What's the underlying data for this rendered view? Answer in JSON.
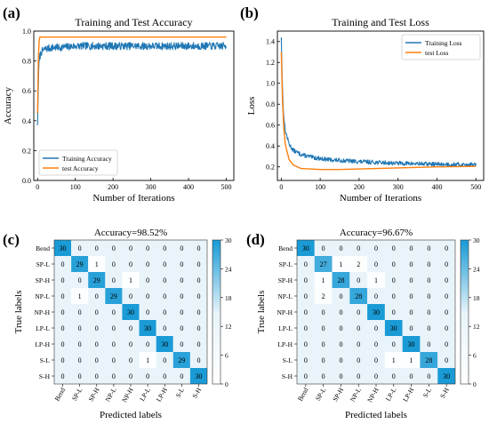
{
  "chart_data": [
    {
      "id": "a",
      "type": "line",
      "panel_label": "(a)",
      "title": "Training and Test Accuracy",
      "xlabel": "Number of Iterations",
      "ylabel": "Accuracy",
      "xlim": [
        -10,
        520
      ],
      "ylim": [
        0.0,
        1.0
      ],
      "xticks": [
        0,
        100,
        200,
        300,
        400,
        500
      ],
      "yticks": [
        0.0,
        0.2,
        0.4,
        0.6,
        0.8,
        1.0
      ],
      "ytick_labels": [
        "0.0",
        "0.2",
        "0.4",
        "0.6",
        "0.8",
        "1.0"
      ],
      "legend_position": "lower-left",
      "colors": {
        "Training Accuracy": "#1f77b4",
        "test Accuracy": "#ff7f0e"
      },
      "series": [
        {
          "name": "Training Accuracy",
          "style": "noisy",
          "x": [
            0,
            3,
            6,
            10,
            20,
            40,
            60,
            100,
            150,
            200,
            250,
            300,
            350,
            400,
            450,
            500
          ],
          "y": [
            0.37,
            0.75,
            0.83,
            0.86,
            0.88,
            0.89,
            0.89,
            0.9,
            0.9,
            0.9,
            0.9,
            0.9,
            0.9,
            0.9,
            0.9,
            0.9
          ],
          "noise": 0.025,
          "seed": 7
        },
        {
          "name": "test Accuracy",
          "style": "smooth",
          "x": [
            0,
            2,
            4,
            6,
            10,
            500
          ],
          "y": [
            0.45,
            0.8,
            0.93,
            0.96,
            0.96,
            0.96
          ]
        }
      ]
    },
    {
      "id": "b",
      "type": "line",
      "panel_label": "(b)",
      "title": "Training and Test Loss",
      "xlabel": "Number of Iterations",
      "ylabel": "Loss",
      "xlim": [
        -10,
        520
      ],
      "ylim": [
        0.07,
        1.5
      ],
      "xticks": [
        0,
        100,
        200,
        300,
        400,
        500
      ],
      "yticks": [
        0.2,
        0.4,
        0.6,
        0.8,
        1.0,
        1.2,
        1.4
      ],
      "ytick_labels": [
        "0.2",
        "0.4",
        "0.6",
        "0.8",
        "1.0",
        "1.2",
        "1.4"
      ],
      "legend_position": "upper-right",
      "colors": {
        "Training Loss": "#1f77b4",
        "test Loss": "#ff7f0e"
      },
      "series": [
        {
          "name": "Training Loss",
          "style": "noisy",
          "x": [
            0,
            2,
            5,
            10,
            20,
            30,
            50,
            80,
            120,
            200,
            300,
            400,
            500
          ],
          "y": [
            1.44,
            1.1,
            0.75,
            0.55,
            0.42,
            0.36,
            0.32,
            0.29,
            0.27,
            0.25,
            0.235,
            0.225,
            0.22
          ],
          "noise": 0.02,
          "seed": 13
        },
        {
          "name": "test Loss",
          "style": "smooth",
          "x": [
            0,
            3,
            6,
            10,
            20,
            30,
            50,
            100,
            150,
            200,
            300,
            400,
            500
          ],
          "y": [
            1.3,
            0.85,
            0.6,
            0.42,
            0.27,
            0.22,
            0.185,
            0.175,
            0.175,
            0.18,
            0.19,
            0.2,
            0.205
          ]
        }
      ]
    },
    {
      "id": "c",
      "type": "heatmap",
      "panel_label": "(c)",
      "title": "Accuracy=98.52%",
      "xlabel": "Predicted labels",
      "ylabel": "True labels",
      "labels": [
        "Bend",
        "SP-L",
        "SP-H",
        "NP-L",
        "NP-H",
        "LP-L",
        "LP-H",
        "S-L",
        "S-H"
      ],
      "matrix": [
        [
          30,
          0,
          0,
          0,
          0,
          0,
          0,
          0,
          0
        ],
        [
          0,
          29,
          1,
          0,
          0,
          0,
          0,
          0,
          0
        ],
        [
          0,
          0,
          29,
          0,
          1,
          0,
          0,
          0,
          0
        ],
        [
          0,
          1,
          0,
          29,
          0,
          0,
          0,
          0,
          0
        ],
        [
          0,
          0,
          0,
          0,
          30,
          0,
          0,
          0,
          0
        ],
        [
          0,
          0,
          0,
          0,
          0,
          30,
          0,
          0,
          0
        ],
        [
          0,
          0,
          0,
          0,
          0,
          0,
          30,
          0,
          0
        ],
        [
          0,
          0,
          0,
          0,
          0,
          1,
          0,
          29,
          0
        ],
        [
          0,
          0,
          0,
          0,
          0,
          0,
          0,
          0,
          30
        ]
      ],
      "colorbar_ticks": [
        0,
        6,
        12,
        18,
        24,
        30
      ],
      "colormap": [
        "#ffffff",
        "#e8f4fa",
        "#1a9bd6"
      ]
    },
    {
      "id": "d",
      "type": "heatmap",
      "panel_label": "(d)",
      "title": "Accuracy=96.67%",
      "xlabel": "Predicted labels",
      "ylabel": "True labels",
      "labels": [
        "Bend",
        "SP-L",
        "SP-H",
        "NP-L",
        "NP-H",
        "LP-L",
        "LP-H",
        "S-L",
        "S-H"
      ],
      "matrix": [
        [
          30,
          0,
          0,
          0,
          0,
          0,
          0,
          0,
          0
        ],
        [
          0,
          27,
          1,
          2,
          0,
          0,
          0,
          0,
          0
        ],
        [
          0,
          1,
          28,
          0,
          1,
          0,
          0,
          0,
          0
        ],
        [
          0,
          2,
          0,
          28,
          0,
          0,
          0,
          0,
          0
        ],
        [
          0,
          0,
          0,
          0,
          30,
          0,
          0,
          0,
          0
        ],
        [
          0,
          0,
          0,
          0,
          0,
          30,
          0,
          0,
          0
        ],
        [
          0,
          0,
          0,
          0,
          0,
          0,
          30,
          0,
          0
        ],
        [
          0,
          0,
          0,
          0,
          0,
          1,
          1,
          28,
          0
        ],
        [
          0,
          0,
          0,
          0,
          0,
          0,
          0,
          0,
          30
        ]
      ],
      "colorbar_ticks": [
        0,
        6,
        12,
        18,
        24,
        30
      ],
      "colormap": [
        "#ffffff",
        "#e8f4fa",
        "#1a9bd6"
      ]
    }
  ]
}
